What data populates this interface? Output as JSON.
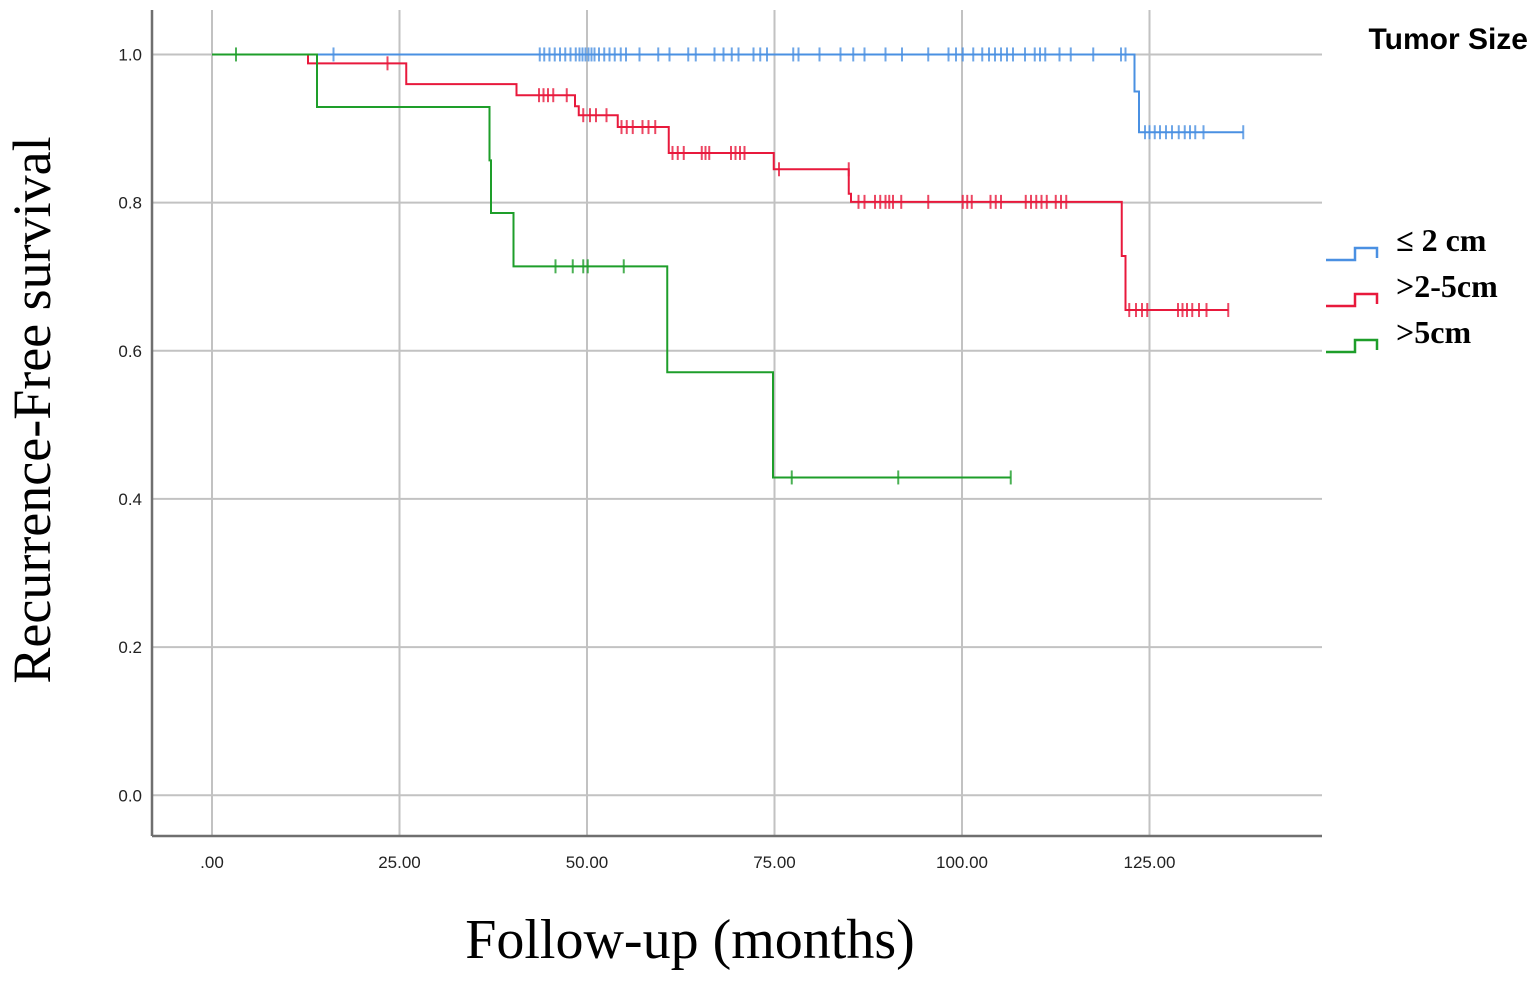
{
  "chart_data": {
    "type": "line",
    "step": true,
    "title": "",
    "xlabel": "Follow-up (months)",
    "ylabel": "Recurrence-Free survival",
    "xlim": [
      -8,
      148
    ],
    "ylim": [
      -0.055,
      1.06
    ],
    "x_ticks": [
      0,
      25,
      50,
      75,
      100,
      125
    ],
    "x_tick_labels": [
      ".00",
      "25.00",
      "50.00",
      "75.00",
      "100.00",
      "125.00"
    ],
    "y_ticks": [
      0.0,
      0.2,
      0.4,
      0.6,
      0.8,
      1.0
    ],
    "y_tick_labels": [
      "0.0",
      "0.2",
      "0.4",
      "0.6",
      "0.8",
      "1.0"
    ],
    "grid": true,
    "legend": {
      "title": "Tumor Size",
      "position": "right"
    },
    "series": [
      {
        "name": "≤ 2 cm",
        "color": "#4a90e2",
        "steps": [
          [
            0,
            1.0
          ],
          [
            123.0,
            0.95
          ],
          [
            123.6,
            0.895
          ],
          [
            137.5,
            0.895
          ]
        ],
        "censored": [
          [
            16.2,
            1.0
          ],
          [
            43.7,
            1.0
          ],
          [
            44.3,
            1.0
          ],
          [
            45.0,
            1.0
          ],
          [
            45.7,
            1.0
          ],
          [
            46.4,
            1.0
          ],
          [
            47.1,
            1.0
          ],
          [
            47.8,
            1.0
          ],
          [
            48.5,
            1.0
          ],
          [
            49.0,
            1.0
          ],
          [
            49.4,
            1.0
          ],
          [
            49.8,
            1.0
          ],
          [
            50.2,
            1.0
          ],
          [
            50.6,
            1.0
          ],
          [
            51.0,
            1.0
          ],
          [
            51.6,
            1.0
          ],
          [
            52.3,
            1.0
          ],
          [
            53.0,
            1.0
          ],
          [
            53.7,
            1.0
          ],
          [
            54.5,
            1.0
          ],
          [
            55.2,
            1.0
          ],
          [
            57.0,
            1.0
          ],
          [
            59.5,
            1.0
          ],
          [
            61.0,
            1.0
          ],
          [
            63.5,
            1.0
          ],
          [
            64.5,
            1.0
          ],
          [
            67.0,
            1.0
          ],
          [
            68.2,
            1.0
          ],
          [
            69.3,
            1.0
          ],
          [
            70.2,
            1.0
          ],
          [
            72.2,
            1.0
          ],
          [
            73.1,
            1.0
          ],
          [
            74.0,
            1.0
          ],
          [
            77.5,
            1.0
          ],
          [
            78.2,
            1.0
          ],
          [
            81.0,
            1.0
          ],
          [
            83.8,
            1.0
          ],
          [
            85.5,
            1.0
          ],
          [
            87.0,
            1.0
          ],
          [
            89.8,
            1.0
          ],
          [
            92.0,
            1.0
          ],
          [
            95.5,
            1.0
          ],
          [
            98.2,
            1.0
          ],
          [
            99.2,
            1.0
          ],
          [
            100.1,
            1.0
          ],
          [
            101.5,
            1.0
          ],
          [
            102.7,
            1.0
          ],
          [
            103.6,
            1.0
          ],
          [
            104.4,
            1.0
          ],
          [
            105.2,
            1.0
          ],
          [
            106.0,
            1.0
          ],
          [
            106.8,
            1.0
          ],
          [
            108.4,
            1.0
          ],
          [
            109.7,
            1.0
          ],
          [
            110.4,
            1.0
          ],
          [
            111.1,
            1.0
          ],
          [
            113.0,
            1.0
          ],
          [
            114.5,
            1.0
          ],
          [
            117.5,
            1.0
          ],
          [
            121.2,
            1.0
          ],
          [
            121.8,
            1.0
          ],
          [
            124.4,
            0.895
          ],
          [
            125.0,
            0.895
          ],
          [
            125.7,
            0.895
          ],
          [
            126.4,
            0.895
          ],
          [
            127.2,
            0.895
          ],
          [
            128.0,
            0.895
          ],
          [
            128.9,
            0.895
          ],
          [
            129.7,
            0.895
          ],
          [
            130.4,
            0.895
          ],
          [
            131.1,
            0.895
          ],
          [
            132.2,
            0.895
          ],
          [
            137.5,
            0.895
          ]
        ]
      },
      {
        "name": ">2-5cm",
        "color": "#e8193c",
        "steps": [
          [
            0,
            1.0
          ],
          [
            12.8,
            0.988
          ],
          [
            25.9,
            0.96
          ],
          [
            40.6,
            0.945
          ],
          [
            48.4,
            0.93
          ],
          [
            48.9,
            0.918
          ],
          [
            54.1,
            0.902
          ],
          [
            60.9,
            0.867
          ],
          [
            74.9,
            0.845
          ],
          [
            84.9,
            0.812
          ],
          [
            85.2,
            0.801
          ],
          [
            121.3,
            0.728
          ],
          [
            121.8,
            0.655
          ],
          [
            135.5,
            0.655
          ]
        ],
        "censored": [
          [
            23.4,
            0.988
          ],
          [
            43.6,
            0.945
          ],
          [
            44.2,
            0.945
          ],
          [
            44.8,
            0.945
          ],
          [
            45.5,
            0.945
          ],
          [
            47.3,
            0.945
          ],
          [
            49.5,
            0.918
          ],
          [
            50.4,
            0.918
          ],
          [
            51.2,
            0.918
          ],
          [
            52.6,
            0.918
          ],
          [
            54.6,
            0.902
          ],
          [
            55.3,
            0.902
          ],
          [
            56.1,
            0.902
          ],
          [
            57.4,
            0.902
          ],
          [
            58.2,
            0.902
          ],
          [
            59.1,
            0.902
          ],
          [
            61.4,
            0.867
          ],
          [
            62.1,
            0.867
          ],
          [
            62.9,
            0.867
          ],
          [
            65.3,
            0.867
          ],
          [
            65.8,
            0.867
          ],
          [
            66.3,
            0.867
          ],
          [
            69.2,
            0.867
          ],
          [
            69.8,
            0.867
          ],
          [
            70.4,
            0.867
          ],
          [
            71.0,
            0.867
          ],
          [
            75.6,
            0.845
          ],
          [
            84.9,
            0.845
          ],
          [
            86.2,
            0.801
          ],
          [
            87.0,
            0.801
          ],
          [
            88.4,
            0.801
          ],
          [
            89.1,
            0.801
          ],
          [
            89.8,
            0.801
          ],
          [
            90.3,
            0.801
          ],
          [
            90.8,
            0.801
          ],
          [
            91.9,
            0.801
          ],
          [
            95.5,
            0.801
          ],
          [
            100.1,
            0.801
          ],
          [
            100.7,
            0.801
          ],
          [
            101.3,
            0.801
          ],
          [
            103.8,
            0.801
          ],
          [
            104.5,
            0.801
          ],
          [
            105.2,
            0.801
          ],
          [
            108.5,
            0.801
          ],
          [
            109.2,
            0.801
          ],
          [
            109.9,
            0.801
          ],
          [
            110.6,
            0.801
          ],
          [
            111.3,
            0.801
          ],
          [
            112.5,
            0.801
          ],
          [
            113.2,
            0.801
          ],
          [
            113.9,
            0.801
          ],
          [
            122.3,
            0.655
          ],
          [
            123.2,
            0.655
          ],
          [
            124.0,
            0.655
          ],
          [
            124.7,
            0.655
          ],
          [
            128.8,
            0.655
          ],
          [
            129.4,
            0.655
          ],
          [
            130.0,
            0.655
          ],
          [
            130.7,
            0.655
          ],
          [
            131.6,
            0.655
          ],
          [
            132.6,
            0.655
          ],
          [
            135.5,
            0.655
          ]
        ]
      },
      {
        "name": ">5cm",
        "color": "#1e9e2a",
        "steps": [
          [
            0,
            1.0
          ],
          [
            14.0,
            0.929
          ],
          [
            37.0,
            0.857
          ],
          [
            37.2,
            0.786
          ],
          [
            40.2,
            0.714
          ],
          [
            60.7,
            0.571
          ],
          [
            74.8,
            0.429
          ],
          [
            106.5,
            0.429
          ]
        ],
        "censored": [
          [
            3.2,
            1.0
          ],
          [
            45.8,
            0.714
          ],
          [
            48.1,
            0.714
          ],
          [
            49.5,
            0.714
          ],
          [
            50.1,
            0.714
          ],
          [
            54.9,
            0.714
          ],
          [
            77.3,
            0.429
          ],
          [
            91.5,
            0.429
          ],
          [
            106.5,
            0.429
          ]
        ]
      }
    ]
  }
}
